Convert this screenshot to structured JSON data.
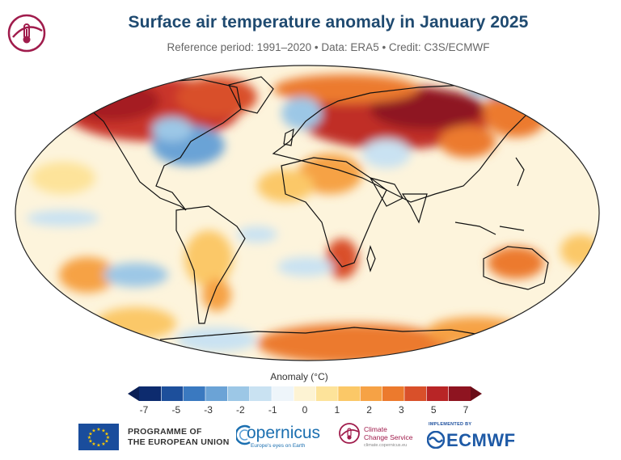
{
  "header": {
    "title": "Surface air temperature anomaly in January 2025",
    "subtitle": "Reference period: 1991–2020 • Data: ERA5 • Credit: C3S/ECMWF"
  },
  "legend": {
    "title": "Anomaly (°C)",
    "ticks": [
      "-7",
      "-5",
      "-3",
      "-2",
      "-1",
      "0",
      "1",
      "2",
      "3",
      "5",
      "7"
    ],
    "colors": [
      "#0d2b6e",
      "#1d4f9b",
      "#3a79c0",
      "#6ba3d6",
      "#9cc7e6",
      "#c9e2f2",
      "#eef5fa",
      "#fdf3d3",
      "#fde39a",
      "#fbc867",
      "#f6a245",
      "#ec7a2d",
      "#d9502a",
      "#b82526",
      "#8e1420"
    ],
    "under_color": "#0a1f55",
    "over_color": "#6a0d18"
  },
  "map": {
    "ocean_color": "#fdf4dc",
    "coast_color": "#111111"
  },
  "footer": {
    "eu_label_line1": "PROGRAMME OF",
    "eu_label_line2": "THE EUROPEAN UNION",
    "copernicus": "opernicus",
    "copernicus_tagline": "Europe's eyes on Earth",
    "ccs_line1": "Climate",
    "ccs_line2": "Change Service",
    "ccs_url": "climate.copernicus.eu",
    "ecmwf_implemented": "IMPLEMENTED BY",
    "ecmwf": "ECMWF"
  }
}
